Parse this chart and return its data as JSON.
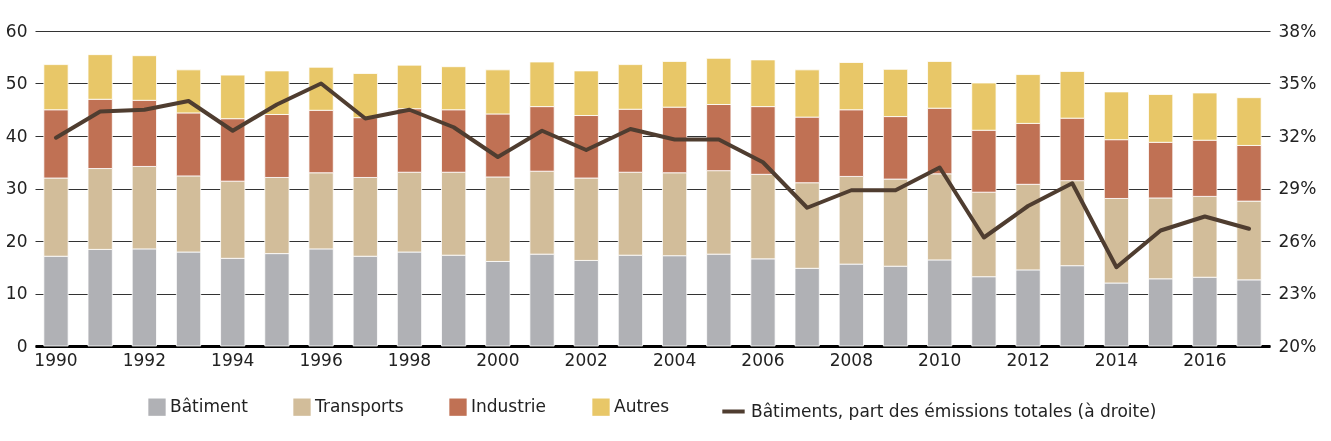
{
  "chart_data": {
    "type": "bar",
    "stacked": true,
    "grid": "y",
    "legend": "bottom",
    "categories": [
      "1990",
      null,
      "1992",
      null,
      "1994",
      null,
      "1996",
      null,
      "1998",
      null,
      "2000",
      null,
      "2002",
      null,
      "2004",
      null,
      "2006",
      null,
      "2008",
      null,
      "2010",
      null,
      "2012",
      null,
      "2014",
      null,
      "2016",
      null
    ],
    "ylim": [
      0,
      60
    ],
    "yticks": [
      0,
      10,
      20,
      30,
      40,
      50,
      60
    ],
    "y2lim": [
      20,
      38
    ],
    "y2ticks": [
      {
        "value": 20,
        "label": "20%"
      },
      {
        "value": 23,
        "label": "23%"
      },
      {
        "value": 26,
        "label": "26%"
      },
      {
        "value": 29,
        "label": "29%"
      },
      {
        "value": 32,
        "label": "32%"
      },
      {
        "value": 35,
        "label": "35%"
      },
      {
        "value": 38,
        "label": "38%"
      }
    ],
    "series": [
      {
        "name": "Bâtiment",
        "color": "#b0b1b5",
        "values": [
          17.1,
          18.4,
          18.5,
          17.9,
          16.7,
          17.6,
          18.5,
          17.1,
          17.9,
          17.3,
          16.1,
          17.5,
          16.3,
          17.3,
          17.2,
          17.5,
          16.6,
          14.8,
          15.6,
          15.2,
          16.4,
          13.2,
          14.5,
          15.3,
          12.0,
          12.8,
          13.1,
          12.6
        ]
      },
      {
        "name": "Transports",
        "color": "#d2bd9a",
        "values": [
          14.9,
          15.4,
          15.7,
          14.5,
          14.7,
          14.5,
          14.5,
          15.0,
          15.2,
          15.8,
          16.1,
          15.8,
          15.7,
          15.8,
          15.8,
          15.9,
          16.1,
          16.3,
          16.7,
          16.6,
          16.4,
          16.1,
          16.3,
          16.2,
          16.1,
          15.4,
          15.4,
          15.0
        ]
      },
      {
        "name": "Industrie",
        "color": "#c07154",
        "values": [
          13.0,
          13.2,
          12.6,
          12.0,
          11.9,
          12.0,
          11.9,
          11.4,
          12.1,
          11.9,
          12.0,
          12.3,
          11.9,
          12.0,
          12.5,
          12.6,
          12.9,
          12.5,
          12.7,
          11.9,
          12.5,
          11.8,
          11.6,
          11.9,
          11.2,
          10.6,
          10.7,
          10.6
        ]
      },
      {
        "name": "Autres",
        "color": "#e8c768",
        "values": [
          8.6,
          8.5,
          8.5,
          8.2,
          8.3,
          8.3,
          8.2,
          8.4,
          8.3,
          8.2,
          8.4,
          8.5,
          8.5,
          8.5,
          8.7,
          8.8,
          8.9,
          9.0,
          9.0,
          9.0,
          8.9,
          9.0,
          9.3,
          8.9,
          9.1,
          9.1,
          9.0,
          9.1
        ]
      },
      {
        "name": "Bâtiments, part des émissions totales (à droite)",
        "type": "line",
        "axis": "y2",
        "color": "#4f3d30",
        "values": [
          31.9,
          33.4,
          33.5,
          34.0,
          32.3,
          33.8,
          35.0,
          33.0,
          33.5,
          32.5,
          30.8,
          32.3,
          31.2,
          32.4,
          31.8,
          31.8,
          30.5,
          27.9,
          28.9,
          28.9,
          30.2,
          26.2,
          28.0,
          29.3,
          24.5,
          26.6,
          27.4,
          26.7
        ]
      }
    ]
  }
}
